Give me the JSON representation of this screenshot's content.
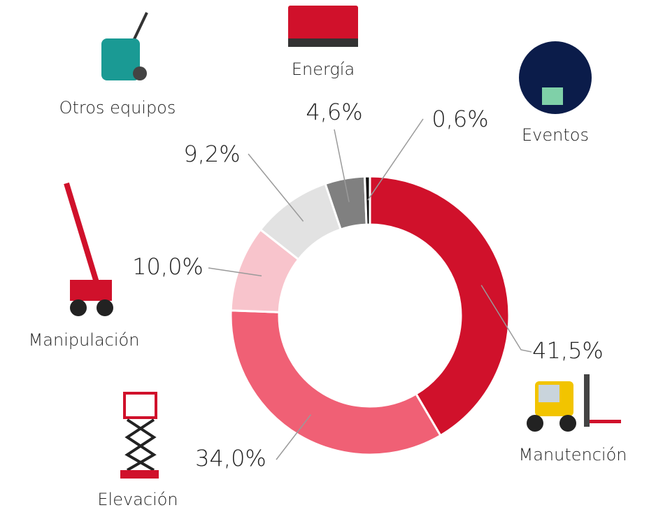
{
  "chart_data": {
    "type": "donut",
    "categories": [
      "Manutención",
      "Elevación",
      "Manipulación",
      "Otros equipos",
      "Energía",
      "Eventos"
    ],
    "values": [
      41.5,
      34.0,
      10.0,
      9.2,
      4.6,
      0.6
    ],
    "value_labels": [
      "41,5%",
      "34,0%",
      "10,0%",
      "9,2%",
      "4,6%",
      "0,6%"
    ],
    "colors": [
      "#d0112b",
      "#f06075",
      "#f8c4cc",
      "#e2e2e2",
      "#808080",
      "#111111"
    ]
  }
}
